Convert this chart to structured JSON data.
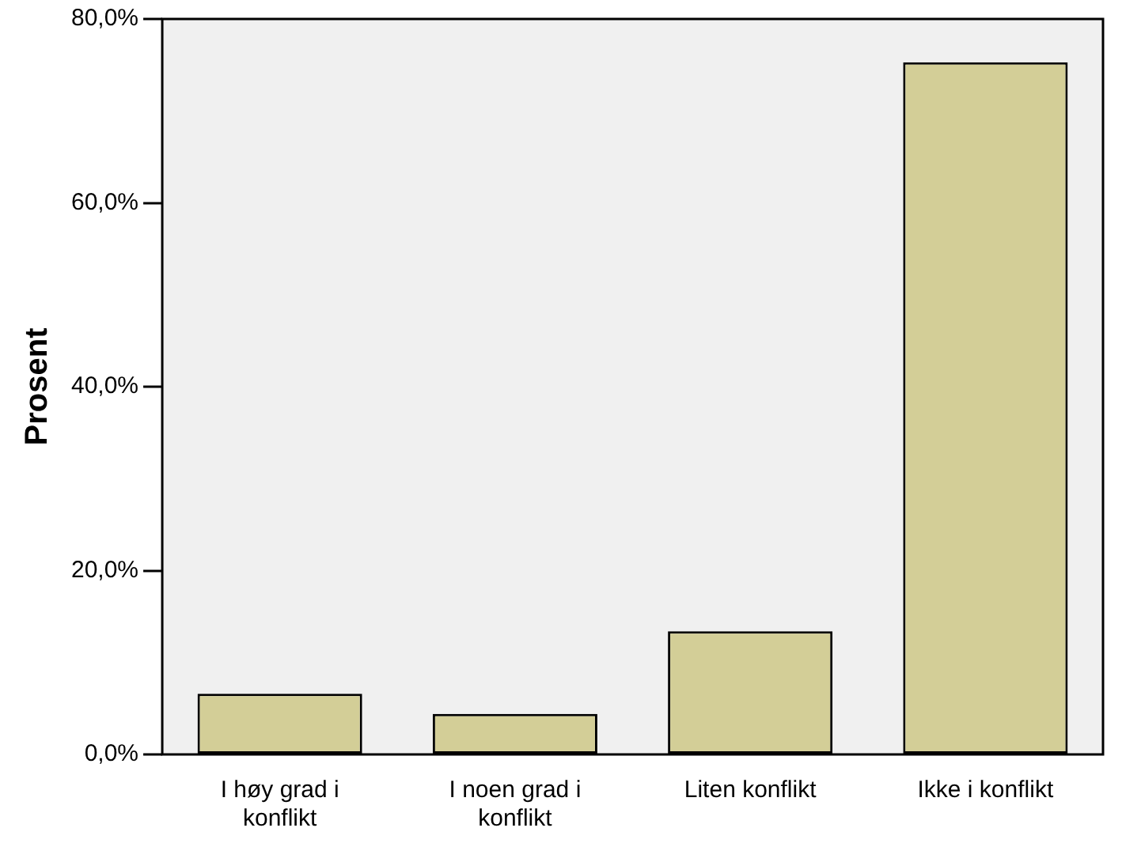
{
  "chart_data": {
    "type": "bar",
    "ylabel": "Prosent",
    "categories": [
      "I høy grad i konflikt",
      "I noen grad i konflikt",
      "Liten konflikt",
      "Ikke i konflikt"
    ],
    "values": [
      6.6,
      4.4,
      13.4,
      75.3
    ],
    "color": "#d3ce97",
    "ylim": [
      0,
      80
    ],
    "yticks": [
      {
        "value": 0,
        "label": "0,0%"
      },
      {
        "value": 20,
        "label": "20,0%"
      },
      {
        "value": 40,
        "label": "40,0%"
      },
      {
        "value": 60,
        "label": "60,0%"
      },
      {
        "value": 80,
        "label": "80,0%"
      }
    ],
    "grid": false,
    "legend": false
  }
}
